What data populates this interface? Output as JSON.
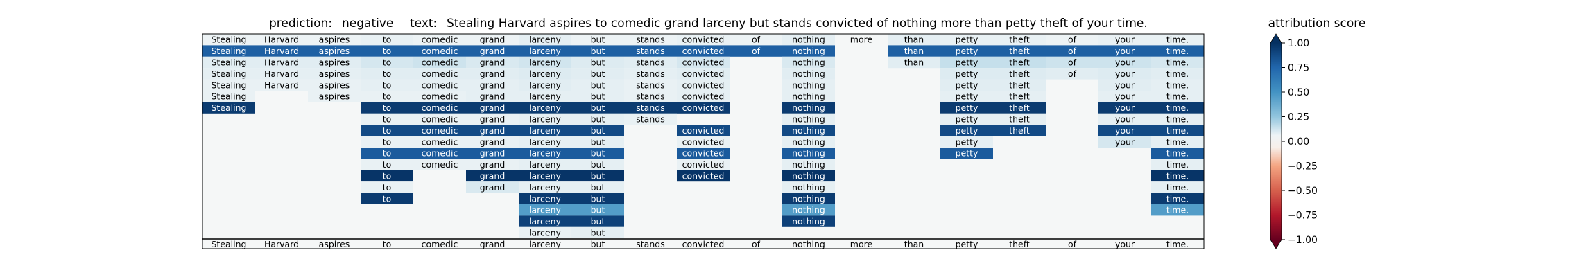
{
  "chart_data": {
    "type": "heatmap",
    "title_parts": {
      "prediction_label": "prediction:",
      "prediction_value": "negative",
      "text_label": "text:",
      "text_value": "Stealing Harvard aspires to comedic grand larceny but stands convicted of nothing more than petty theft of your time."
    },
    "tokens": [
      "Stealing",
      "Harvard",
      "aspires",
      "to",
      "comedic",
      "grand",
      "larceny",
      "but",
      "stands",
      "convicted",
      "of",
      "nothing",
      "more",
      "than",
      "petty",
      "theft",
      "of",
      "your",
      "time."
    ],
    "rows": [
      [
        0.02,
        0.02,
        0.02,
        0.03,
        0.02,
        0.02,
        0.04,
        0.02,
        0.02,
        0.03,
        0.02,
        0.04,
        0.0,
        0.04,
        0.03,
        0.03,
        0.02,
        0.03,
        0.03
      ],
      [
        0.78,
        0.78,
        0.78,
        0.78,
        0.78,
        0.78,
        0.78,
        0.78,
        0.78,
        0.78,
        0.78,
        0.78,
        null,
        0.78,
        0.78,
        0.78,
        0.78,
        0.78,
        0.78
      ],
      [
        0.05,
        0.05,
        0.05,
        0.08,
        0.1,
        0.07,
        0.09,
        0.06,
        0.05,
        0.08,
        null,
        0.07,
        null,
        0.05,
        0.12,
        0.12,
        0.1,
        0.1,
        0.08
      ],
      [
        0.04,
        0.04,
        0.04,
        0.05,
        0.05,
        0.05,
        0.06,
        0.05,
        0.04,
        0.05,
        null,
        0.05,
        null,
        null,
        0.06,
        0.06,
        0.05,
        0.06,
        0.05
      ],
      [
        0.03,
        0.03,
        0.03,
        0.04,
        0.04,
        0.04,
        0.05,
        0.04,
        0.03,
        0.04,
        null,
        0.04,
        null,
        null,
        0.05,
        0.05,
        null,
        0.05,
        0.04
      ],
      [
        0.03,
        null,
        0.03,
        0.03,
        0.03,
        0.04,
        0.04,
        0.04,
        0.03,
        0.04,
        null,
        0.04,
        null,
        null,
        0.04,
        0.04,
        null,
        0.04,
        0.04
      ],
      [
        0.95,
        null,
        null,
        0.95,
        0.95,
        0.95,
        0.95,
        0.95,
        0.95,
        0.95,
        null,
        0.95,
        null,
        null,
        0.95,
        0.95,
        null,
        0.95,
        0.95
      ],
      [
        null,
        null,
        null,
        0.03,
        0.03,
        0.03,
        0.04,
        0.04,
        0.03,
        null,
        null,
        0.04,
        null,
        null,
        0.04,
        0.04,
        null,
        0.04,
        0.04
      ],
      [
        null,
        null,
        null,
        0.88,
        0.88,
        0.88,
        0.88,
        0.88,
        null,
        0.88,
        null,
        0.88,
        null,
        null,
        0.88,
        0.88,
        null,
        0.88,
        0.88
      ],
      [
        null,
        null,
        null,
        0.03,
        0.03,
        0.03,
        0.04,
        0.04,
        null,
        0.03,
        null,
        0.04,
        null,
        null,
        0.04,
        null,
        null,
        0.08,
        0.04
      ],
      [
        null,
        null,
        null,
        0.8,
        0.8,
        0.8,
        0.8,
        0.8,
        null,
        0.8,
        null,
        0.8,
        null,
        null,
        0.8,
        null,
        null,
        null,
        0.8
      ],
      [
        null,
        null,
        null,
        0.03,
        0.03,
        0.03,
        0.04,
        0.04,
        null,
        0.03,
        null,
        0.04,
        null,
        null,
        null,
        null,
        null,
        null,
        0.04
      ],
      [
        null,
        null,
        null,
        0.98,
        null,
        0.98,
        0.98,
        0.98,
        null,
        0.98,
        null,
        0.98,
        null,
        null,
        null,
        null,
        null,
        null,
        0.98
      ],
      [
        null,
        null,
        null,
        0.03,
        null,
        0.07,
        0.04,
        0.04,
        null,
        null,
        null,
        0.04,
        null,
        null,
        null,
        null,
        null,
        null,
        0.04
      ],
      [
        null,
        null,
        null,
        0.95,
        null,
        null,
        0.95,
        0.95,
        null,
        null,
        null,
        0.95,
        null,
        null,
        null,
        null,
        null,
        null,
        0.95
      ],
      [
        null,
        null,
        null,
        null,
        null,
        null,
        0.45,
        0.45,
        null,
        null,
        null,
        0.45,
        null,
        null,
        null,
        null,
        null,
        null,
        0.45
      ],
      [
        null,
        null,
        null,
        null,
        null,
        null,
        0.92,
        0.92,
        null,
        null,
        null,
        0.92,
        null,
        null,
        null,
        null,
        null,
        null,
        null
      ],
      [
        null,
        null,
        null,
        null,
        null,
        null,
        0.03,
        0.04,
        null,
        null,
        null,
        null,
        null,
        null,
        null,
        null,
        null,
        null,
        null
      ]
    ],
    "x_tick_labels": [
      "Stealing",
      "Harvard",
      "aspires",
      "to",
      "comedic",
      "grand",
      "larceny",
      "but",
      "stands",
      "convicted",
      "of",
      "nothing",
      "more",
      "than",
      "petty",
      "theft",
      "of",
      "your",
      "time."
    ],
    "colorbar": {
      "label": "attribution score",
      "colormap": "RdBu",
      "range": [
        -1.0,
        1.0
      ],
      "ticks": [
        1.0,
        0.75,
        0.5,
        0.25,
        0.0,
        -0.25,
        -0.5,
        -0.75,
        -1.0
      ],
      "tick_labels": [
        "1.00",
        "0.75",
        "0.50",
        "0.25",
        "0.00",
        "−0.25",
        "−0.50",
        "−0.75",
        "−1.00"
      ]
    }
  }
}
